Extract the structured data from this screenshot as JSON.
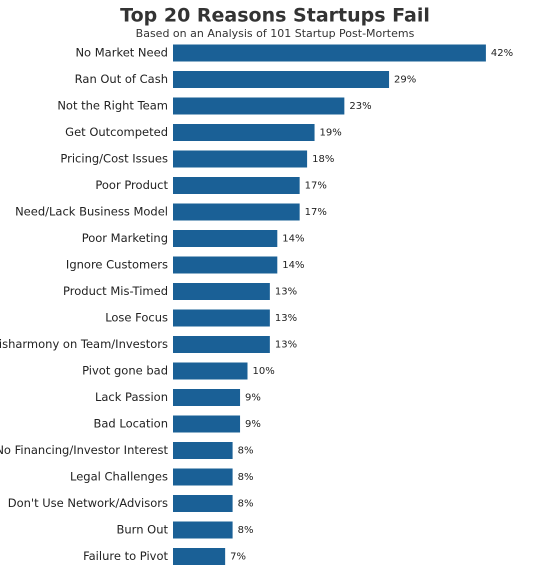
{
  "chart_data": {
    "type": "bar",
    "orientation": "horizontal",
    "title": "Top 20 Reasons Startups Fail",
    "subtitle": "Based on an Analysis of 101 Startup Post-Mortems",
    "categories": [
      "No Market Need",
      "Ran Out of Cash",
      "Not the Right Team",
      "Get Outcompeted",
      "Pricing/Cost Issues",
      "Poor Product",
      "Need/Lack Business Model",
      "Poor Marketing",
      "Ignore Customers",
      "Product Mis-Timed",
      "Lose Focus",
      "Disharmony on Team/Investors",
      "Pivot gone bad",
      "Lack Passion",
      "Bad Location",
      "No Financing/Investor Interest",
      "Legal Challenges",
      "Don't Use Network/Advisors",
      "Burn Out",
      "Failure to Pivot"
    ],
    "values": [
      42,
      29,
      23,
      19,
      18,
      17,
      17,
      14,
      14,
      13,
      13,
      13,
      10,
      9,
      9,
      8,
      8,
      8,
      8,
      7
    ],
    "value_labels": [
      "42%",
      "29%",
      "23%",
      "19%",
      "18%",
      "17%",
      "17%",
      "14%",
      "14%",
      "13%",
      "13%",
      "13%",
      "10%",
      "9%",
      "9%",
      "8%",
      "8%",
      "8%",
      "8%",
      "7%"
    ],
    "color": "#1a6096"
  }
}
